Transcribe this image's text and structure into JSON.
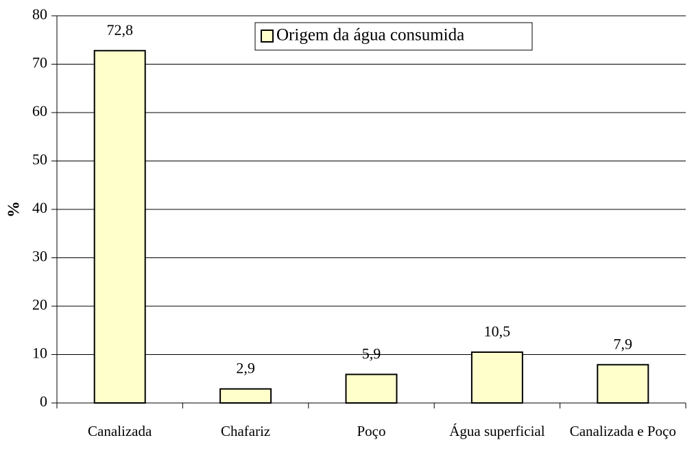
{
  "chart_data": {
    "type": "bar",
    "y_label": "%",
    "categories": [
      "Canalizada",
      "Chafariz",
      "Poço",
      "Água superficial",
      "Canalizada e Poço"
    ],
    "series": [
      {
        "name": "Origem da água consumida",
        "color": "#ffffcc",
        "values": [
          72.8,
          2.9,
          5.9,
          10.5,
          7.9
        ],
        "value_labels": [
          "72,8",
          "2,9",
          "5,9",
          "10,5",
          "7,9"
        ]
      }
    ],
    "ylim": [
      0,
      80
    ],
    "yticks": [
      0,
      10,
      20,
      30,
      40,
      50,
      60,
      70,
      80
    ],
    "grid": true,
    "legend": "top"
  }
}
